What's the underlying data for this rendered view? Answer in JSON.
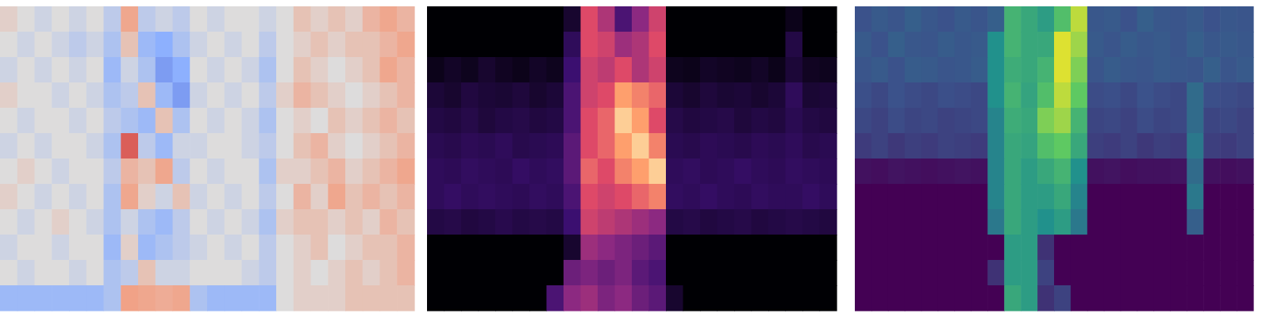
{
  "chart_data": [
    {
      "type": "heatmap",
      "color": "coolwarm",
      "tick_labels": false,
      "zlim": [
        0,
        1
      ],
      "cells": [
        [
          0.55,
          0.5,
          0.45,
          0.5,
          0.45,
          0.5,
          0.4,
          0.7,
          0.4,
          0.45,
          0.4,
          0.5,
          0.45,
          0.5,
          0.5,
          0.45,
          0.5,
          0.6,
          0.55,
          0.6,
          0.55,
          0.65,
          0.7,
          0.65
        ],
        [
          0.5,
          0.45,
          0.5,
          0.45,
          0.4,
          0.45,
          0.35,
          0.6,
          0.3,
          0.25,
          0.35,
          0.45,
          0.5,
          0.45,
          0.5,
          0.4,
          0.5,
          0.55,
          0.6,
          0.55,
          0.6,
          0.6,
          0.65,
          0.7
        ],
        [
          0.45,
          0.5,
          0.45,
          0.5,
          0.45,
          0.5,
          0.3,
          0.45,
          0.35,
          0.2,
          0.25,
          0.5,
          0.45,
          0.5,
          0.45,
          0.35,
          0.5,
          0.6,
          0.55,
          0.5,
          0.55,
          0.6,
          0.7,
          0.65
        ],
        [
          0.55,
          0.5,
          0.5,
          0.45,
          0.5,
          0.45,
          0.35,
          0.4,
          0.6,
          0.3,
          0.2,
          0.45,
          0.5,
          0.45,
          0.5,
          0.4,
          0.55,
          0.65,
          0.6,
          0.55,
          0.5,
          0.55,
          0.6,
          0.65
        ],
        [
          0.5,
          0.45,
          0.5,
          0.5,
          0.45,
          0.5,
          0.4,
          0.35,
          0.3,
          0.6,
          0.35,
          0.5,
          0.45,
          0.5,
          0.45,
          0.35,
          0.5,
          0.55,
          0.5,
          0.6,
          0.55,
          0.6,
          0.65,
          0.6
        ],
        [
          0.45,
          0.5,
          0.45,
          0.5,
          0.5,
          0.45,
          0.35,
          0.85,
          0.4,
          0.3,
          0.45,
          0.45,
          0.5,
          0.5,
          0.45,
          0.4,
          0.5,
          0.6,
          0.65,
          0.55,
          0.5,
          0.55,
          0.6,
          0.65
        ],
        [
          0.5,
          0.55,
          0.5,
          0.45,
          0.5,
          0.5,
          0.4,
          0.65,
          0.6,
          0.7,
          0.4,
          0.5,
          0.45,
          0.5,
          0.5,
          0.35,
          0.55,
          0.55,
          0.6,
          0.65,
          0.55,
          0.6,
          0.65,
          0.7
        ],
        [
          0.55,
          0.5,
          0.45,
          0.5,
          0.45,
          0.5,
          0.35,
          0.7,
          0.55,
          0.45,
          0.6,
          0.45,
          0.5,
          0.45,
          0.5,
          0.4,
          0.5,
          0.65,
          0.55,
          0.7,
          0.6,
          0.65,
          0.6,
          0.65
        ],
        [
          0.5,
          0.45,
          0.5,
          0.55,
          0.5,
          0.45,
          0.35,
          0.45,
          0.35,
          0.3,
          0.4,
          0.5,
          0.45,
          0.5,
          0.45,
          0.35,
          0.55,
          0.6,
          0.6,
          0.55,
          0.6,
          0.55,
          0.65,
          0.6
        ],
        [
          0.45,
          0.5,
          0.5,
          0.45,
          0.5,
          0.5,
          0.3,
          0.55,
          0.3,
          0.35,
          0.4,
          0.45,
          0.5,
          0.45,
          0.5,
          0.4,
          0.5,
          0.55,
          0.6,
          0.5,
          0.55,
          0.6,
          0.6,
          0.65
        ],
        [
          0.5,
          0.45,
          0.5,
          0.5,
          0.45,
          0.5,
          0.35,
          0.4,
          0.6,
          0.45,
          0.45,
          0.5,
          0.5,
          0.5,
          0.45,
          0.4,
          0.5,
          0.55,
          0.5,
          0.55,
          0.6,
          0.55,
          0.6,
          0.65
        ],
        [
          0.3,
          0.3,
          0.3,
          0.3,
          0.3,
          0.3,
          0.35,
          0.72,
          0.7,
          0.68,
          0.7,
          0.35,
          0.3,
          0.3,
          0.3,
          0.3,
          0.5,
          0.55,
          0.55,
          0.55,
          0.6,
          0.6,
          0.6,
          0.6
        ]
      ]
    },
    {
      "type": "heatmap",
      "color": "magma",
      "tick_labels": false,
      "zlim": [
        0,
        1
      ],
      "cells": [
        [
          0,
          0,
          0,
          0,
          0,
          0,
          0,
          0,
          0.1,
          0.75,
          0.6,
          0.3,
          0.5,
          0.7,
          0,
          0,
          0,
          0,
          0,
          0,
          0,
          0.05,
          0,
          0
        ],
        [
          0,
          0,
          0,
          0,
          0,
          0,
          0,
          0,
          0.2,
          0.75,
          0.7,
          0.55,
          0.6,
          0.75,
          0,
          0,
          0,
          0,
          0,
          0,
          0,
          0.15,
          0,
          0
        ],
        [
          0.05,
          0.08,
          0.06,
          0.1,
          0.07,
          0.05,
          0.08,
          0.06,
          0.25,
          0.7,
          0.65,
          0.75,
          0.6,
          0.7,
          0.06,
          0.05,
          0.08,
          0.07,
          0.06,
          0.08,
          0.05,
          0.12,
          0.07,
          0.06
        ],
        [
          0.12,
          0.1,
          0.14,
          0.12,
          0.11,
          0.13,
          0.1,
          0.12,
          0.3,
          0.7,
          0.75,
          0.9,
          0.85,
          0.8,
          0.12,
          0.1,
          0.13,
          0.11,
          0.12,
          0.1,
          0.12,
          0.2,
          0.11,
          0.12
        ],
        [
          0.15,
          0.14,
          0.16,
          0.13,
          0.15,
          0.16,
          0.14,
          0.15,
          0.3,
          0.75,
          0.8,
          0.95,
          0.9,
          0.75,
          0.16,
          0.14,
          0.15,
          0.16,
          0.13,
          0.15,
          0.14,
          0.18,
          0.15,
          0.14
        ],
        [
          0.18,
          0.17,
          0.19,
          0.18,
          0.2,
          0.17,
          0.18,
          0.19,
          0.35,
          0.75,
          0.8,
          0.9,
          0.95,
          0.85,
          0.18,
          0.17,
          0.19,
          0.18,
          0.17,
          0.19,
          0.18,
          0.2,
          0.17,
          0.18
        ],
        [
          0.2,
          0.19,
          0.21,
          0.2,
          0.19,
          0.22,
          0.2,
          0.21,
          0.35,
          0.8,
          0.75,
          0.85,
          0.9,
          0.95,
          0.2,
          0.21,
          0.19,
          0.2,
          0.22,
          0.2,
          0.19,
          0.21,
          0.2,
          0.19
        ],
        [
          0.2,
          0.22,
          0.2,
          0.21,
          0.2,
          0.19,
          0.21,
          0.2,
          0.3,
          0.75,
          0.7,
          0.75,
          0.8,
          0.85,
          0.21,
          0.2,
          0.22,
          0.2,
          0.19,
          0.21,
          0.2,
          0.2,
          0.22,
          0.2
        ],
        [
          0.15,
          0.16,
          0.14,
          0.15,
          0.17,
          0.15,
          0.16,
          0.15,
          0.25,
          0.7,
          0.65,
          0.6,
          0.55,
          0.5,
          0.15,
          0.16,
          0.14,
          0.15,
          0.16,
          0.14,
          0.15,
          0.16,
          0.15,
          0.14
        ],
        [
          0,
          0,
          0,
          0,
          0,
          0,
          0,
          0,
          0.1,
          0.55,
          0.5,
          0.45,
          0.4,
          0.35,
          0,
          0,
          0,
          0,
          0,
          0,
          0,
          0,
          0,
          0
        ],
        [
          0,
          0,
          0,
          0,
          0,
          0,
          0,
          0,
          0.4,
          0.45,
          0.4,
          0.45,
          0.35,
          0.3,
          0,
          0,
          0,
          0,
          0,
          0,
          0,
          0,
          0,
          0
        ],
        [
          0,
          0,
          0,
          0,
          0,
          0,
          0,
          0.3,
          0.5,
          0.55,
          0.45,
          0.5,
          0.4,
          0.35,
          0.1,
          0,
          0,
          0,
          0,
          0,
          0,
          0,
          0,
          0
        ]
      ]
    },
    {
      "type": "heatmap",
      "color": "viridis",
      "tick_labels": false,
      "zlim": [
        0,
        1
      ],
      "cells": [
        [
          0.25,
          0.28,
          0.26,
          0.3,
          0.27,
          0.25,
          0.28,
          0.26,
          0.3,
          0.65,
          0.6,
          0.55,
          0.7,
          0.9,
          0.27,
          0.28,
          0.25,
          0.3,
          0.27,
          0.26,
          0.28,
          0.25,
          0.27,
          0.26
        ],
        [
          0.28,
          0.25,
          0.3,
          0.27,
          0.26,
          0.29,
          0.27,
          0.28,
          0.5,
          0.65,
          0.6,
          0.6,
          0.95,
          0.85,
          0.28,
          0.26,
          0.29,
          0.27,
          0.28,
          0.26,
          0.3,
          0.27,
          0.28,
          0.27
        ],
        [
          0.26,
          0.28,
          0.25,
          0.29,
          0.28,
          0.26,
          0.27,
          0.29,
          0.5,
          0.62,
          0.6,
          0.65,
          0.95,
          0.8,
          0.26,
          0.29,
          0.27,
          0.26,
          0.28,
          0.27,
          0.26,
          0.3,
          0.26,
          0.28
        ],
        [
          0.24,
          0.22,
          0.25,
          0.23,
          0.22,
          0.24,
          0.23,
          0.22,
          0.5,
          0.65,
          0.58,
          0.7,
          0.9,
          0.75,
          0.23,
          0.24,
          0.22,
          0.25,
          0.23,
          0.22,
          0.35,
          0.24,
          0.23,
          0.22
        ],
        [
          0.22,
          0.2,
          0.23,
          0.21,
          0.22,
          0.2,
          0.21,
          0.22,
          0.45,
          0.62,
          0.6,
          0.8,
          0.85,
          0.65,
          0.21,
          0.22,
          0.2,
          0.23,
          0.21,
          0.22,
          0.35,
          0.21,
          0.22,
          0.2
        ],
        [
          0.18,
          0.2,
          0.17,
          0.19,
          0.18,
          0.2,
          0.19,
          0.18,
          0.45,
          0.6,
          0.58,
          0.7,
          0.75,
          0.6,
          0.19,
          0.18,
          0.2,
          0.17,
          0.19,
          0.18,
          0.4,
          0.19,
          0.18,
          0.2
        ],
        [
          0.05,
          0.04,
          0.06,
          0.05,
          0.04,
          0.05,
          0.06,
          0.05,
          0.45,
          0.6,
          0.55,
          0.6,
          0.65,
          0.5,
          0.05,
          0.06,
          0.04,
          0.05,
          0.05,
          0.06,
          0.35,
          0.05,
          0.04,
          0.05
        ],
        [
          0,
          0,
          0,
          0,
          0,
          0,
          0,
          0,
          0.45,
          0.6,
          0.55,
          0.55,
          0.6,
          0.45,
          0,
          0,
          0,
          0,
          0,
          0,
          0.4,
          0,
          0,
          0
        ],
        [
          0,
          0,
          0,
          0,
          0,
          0,
          0,
          0,
          0.4,
          0.6,
          0.55,
          0.5,
          0.55,
          0.4,
          0,
          0,
          0,
          0,
          0,
          0,
          0.3,
          0,
          0,
          0
        ],
        [
          0,
          0,
          0,
          0,
          0,
          0,
          0,
          0,
          0,
          0.55,
          0.55,
          0.15,
          0,
          0,
          0,
          0,
          0,
          0,
          0,
          0,
          0,
          0,
          0,
          0
        ],
        [
          0,
          0,
          0,
          0,
          0,
          0,
          0,
          0,
          0.15,
          0.55,
          0.55,
          0.2,
          0,
          0,
          0,
          0,
          0,
          0,
          0,
          0,
          0,
          0,
          0,
          0
        ],
        [
          0,
          0,
          0,
          0,
          0,
          0,
          0,
          0,
          0,
          0.6,
          0.55,
          0.15,
          0.2,
          0,
          0,
          0,
          0,
          0,
          0,
          0,
          0,
          0,
          0,
          0
        ]
      ]
    }
  ]
}
